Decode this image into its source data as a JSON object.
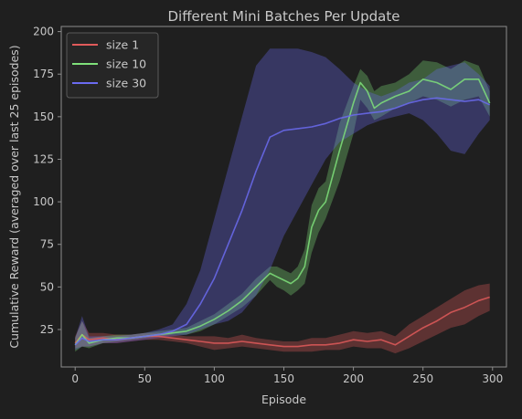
{
  "chart_data": {
    "type": "line",
    "title": "Different Mini Batches Per Update",
    "xlabel": "Episode",
    "ylabel": "Cumulative Reward (averaged over last 25 episodes)",
    "xlim": [
      -10,
      310
    ],
    "ylim": [
      3,
      203
    ],
    "xticks": [
      0,
      50,
      100,
      150,
      200,
      250,
      300
    ],
    "yticks": [
      25,
      50,
      75,
      100,
      125,
      150,
      175,
      200
    ],
    "grid": false,
    "legend_position": "top-left",
    "colors": {
      "background": "#1f1f1f",
      "axes": "#8c8c8c",
      "text": "#c8c8c8",
      "size_1": "#e05a5a",
      "size_10": "#7fe07a",
      "size_30": "#6b6bf0"
    },
    "series": [
      {
        "name": "size 1",
        "color": "#e05a5a",
        "x": [
          0,
          5,
          10,
          20,
          30,
          40,
          50,
          60,
          70,
          80,
          90,
          100,
          110,
          120,
          130,
          140,
          150,
          160,
          170,
          180,
          190,
          200,
          210,
          220,
          230,
          240,
          250,
          260,
          270,
          280,
          290,
          298
        ],
        "values": [
          17,
          22,
          19,
          20,
          19,
          20,
          21,
          21,
          20,
          19,
          18,
          17,
          17,
          18,
          17,
          16,
          15,
          15,
          16,
          16,
          17,
          19,
          18,
          19,
          16,
          21,
          26,
          30,
          35,
          38,
          42,
          44
        ],
        "lower": [
          14,
          15,
          15,
          17,
          17,
          18,
          19,
          19,
          18,
          17,
          15,
          13,
          14,
          15,
          14,
          13,
          12,
          12,
          12,
          13,
          13,
          15,
          14,
          14,
          11,
          14,
          18,
          22,
          26,
          28,
          33,
          36
        ],
        "upper": [
          21,
          30,
          23,
          23,
          22,
          22,
          23,
          23,
          22,
          21,
          21,
          21,
          20,
          22,
          20,
          19,
          18,
          18,
          20,
          20,
          22,
          24,
          23,
          24,
          21,
          28,
          33,
          38,
          43,
          48,
          51,
          52
        ]
      },
      {
        "name": "size 10",
        "color": "#7fe07a",
        "x": [
          0,
          5,
          10,
          20,
          30,
          40,
          50,
          60,
          70,
          80,
          90,
          100,
          110,
          120,
          130,
          140,
          145,
          150,
          155,
          160,
          165,
          170,
          175,
          180,
          190,
          200,
          205,
          210,
          215,
          220,
          230,
          240,
          250,
          260,
          270,
          280,
          290,
          298
        ],
        "values": [
          16,
          22,
          17,
          19,
          20,
          20,
          21,
          22,
          23,
          24,
          27,
          31,
          36,
          42,
          50,
          58,
          56,
          54,
          52,
          55,
          62,
          85,
          95,
          100,
          130,
          158,
          170,
          165,
          155,
          158,
          162,
          165,
          172,
          170,
          166,
          172,
          172,
          158
        ],
        "lower": [
          12,
          15,
          14,
          17,
          18,
          19,
          20,
          21,
          22,
          22,
          24,
          28,
          33,
          38,
          45,
          54,
          50,
          48,
          45,
          48,
          52,
          70,
          82,
          90,
          112,
          140,
          160,
          155,
          148,
          150,
          155,
          158,
          162,
          160,
          156,
          160,
          162,
          150
        ],
        "upper": [
          20,
          30,
          20,
          21,
          22,
          22,
          23,
          24,
          25,
          26,
          30,
          34,
          40,
          46,
          55,
          62,
          62,
          60,
          58,
          62,
          72,
          98,
          108,
          112,
          146,
          168,
          178,
          174,
          165,
          168,
          170,
          175,
          183,
          182,
          178,
          183,
          180,
          165
        ]
      },
      {
        "name": "size 30",
        "color": "#6b6bf0",
        "x": [
          0,
          5,
          10,
          20,
          30,
          40,
          50,
          60,
          70,
          80,
          90,
          100,
          110,
          120,
          130,
          140,
          150,
          160,
          170,
          180,
          190,
          200,
          210,
          220,
          230,
          240,
          250,
          260,
          270,
          280,
          290,
          298
        ],
        "values": [
          16,
          20,
          18,
          19,
          19,
          20,
          21,
          22,
          24,
          28,
          40,
          55,
          75,
          95,
          118,
          138,
          142,
          143,
          144,
          146,
          149,
          151,
          152,
          153,
          155,
          158,
          160,
          161,
          160,
          159,
          160,
          157
        ],
        "lower": [
          13,
          15,
          15,
          17,
          17,
          18,
          19,
          20,
          21,
          22,
          25,
          28,
          30,
          35,
          45,
          60,
          80,
          95,
          110,
          125,
          135,
          140,
          145,
          148,
          150,
          152,
          148,
          140,
          130,
          128,
          140,
          148
        ],
        "upper": [
          20,
          33,
          21,
          21,
          21,
          22,
          23,
          25,
          28,
          40,
          60,
          90,
          120,
          150,
          180,
          190,
          190,
          190,
          188,
          185,
          178,
          170,
          165,
          162,
          165,
          170,
          172,
          178,
          180,
          182,
          175,
          168
        ]
      }
    ]
  }
}
